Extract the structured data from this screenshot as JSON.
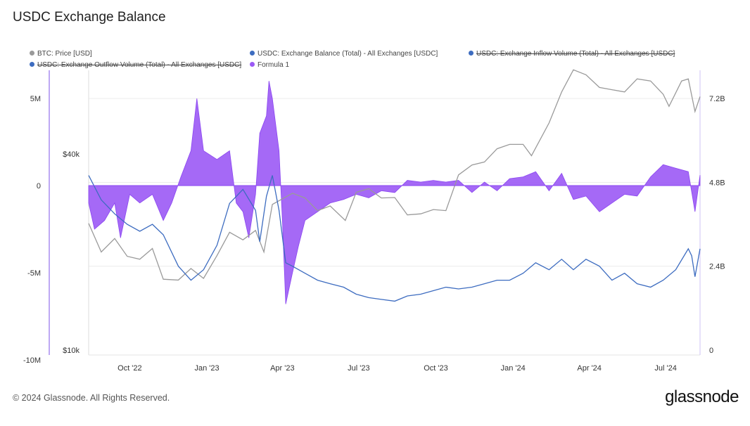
{
  "title": "USDC Exchange Balance",
  "footer": "© 2024 Glassnode. All Rights Reserved.",
  "logo": "glassnode",
  "chart_data": {
    "type": "line",
    "title": "USDC Exchange Balance",
    "legend": [
      {
        "name": "BTC: Price [USD]",
        "color": "#999999",
        "hidden": false
      },
      {
        "name": "USDC: Exchange Balance (Total) - All Exchanges [USDC]",
        "color": "#3d6cc0",
        "hidden": false
      },
      {
        "name": "USDC: Exchange Inflow Volume (Total) - All Exchanges [USDC]",
        "color": "#3d6cc0",
        "hidden": true
      },
      {
        "name": "USDC: Exchange Outflow Volume (Total) - All Exchanges [USDC]",
        "color": "#3d6cc0",
        "hidden": true
      },
      {
        "name": "Formula 1",
        "color": "#9b59f5",
        "hidden": false
      }
    ],
    "x_range": [
      "2022-08-13",
      "2024-08-11"
    ],
    "x_ticks": [
      {
        "date": "2022-10-01",
        "label": "Oct '22"
      },
      {
        "date": "2023-01-01",
        "label": "Jan '23"
      },
      {
        "date": "2023-04-01",
        "label": "Apr '23"
      },
      {
        "date": "2023-07-01",
        "label": "Jul '23"
      },
      {
        "date": "2023-10-01",
        "label": "Oct '23"
      },
      {
        "date": "2024-01-01",
        "label": "Jan '24"
      },
      {
        "date": "2024-04-01",
        "label": "Apr '24"
      },
      {
        "date": "2024-07-01",
        "label": "Jul '24"
      }
    ],
    "y_formula": {
      "range": [
        -10,
        7.6
      ],
      "unit": "M",
      "ticks": [
        {
          "v": 5,
          "label": "5M"
        },
        {
          "v": 0,
          "label": "0"
        },
        {
          "v": -5,
          "label": "-5M"
        },
        {
          "v": -10,
          "label": "-10M"
        }
      ]
    },
    "y_price": {
      "scale": "log",
      "range": [
        10000,
        80000
      ],
      "ticks": [
        {
          "v": 40000,
          "label": "$40k"
        },
        {
          "v": 10000,
          "label": "$10k"
        }
      ]
    },
    "y_balance": {
      "range": [
        0,
        7.6
      ],
      "unit": "B",
      "ticks": [
        {
          "v": 7.2,
          "label": "7.2B"
        },
        {
          "v": 4.8,
          "label": "4.8B"
        },
        {
          "v": 2.4,
          "label": "2.4B"
        },
        {
          "v": 0,
          "label": "0"
        }
      ]
    },
    "series": [
      {
        "name": "BTC: Price [USD]",
        "axis": "price",
        "points": [
          [
            "2022-08-13",
            24500
          ],
          [
            "2022-08-28",
            20000
          ],
          [
            "2022-09-13",
            22000
          ],
          [
            "2022-09-28",
            19400
          ],
          [
            "2022-10-13",
            19000
          ],
          [
            "2022-10-28",
            20500
          ],
          [
            "2022-11-10",
            16500
          ],
          [
            "2022-11-28",
            16400
          ],
          [
            "2022-12-13",
            17800
          ],
          [
            "2022-12-28",
            16600
          ],
          [
            "2023-01-13",
            19500
          ],
          [
            "2023-01-28",
            23000
          ],
          [
            "2023-02-13",
            21800
          ],
          [
            "2023-02-28",
            23300
          ],
          [
            "2023-03-10",
            20000
          ],
          [
            "2023-03-20",
            28000
          ],
          [
            "2023-04-13",
            30300
          ],
          [
            "2023-04-28",
            29300
          ],
          [
            "2023-05-13",
            26800
          ],
          [
            "2023-05-28",
            27700
          ],
          [
            "2023-06-15",
            25000
          ],
          [
            "2023-06-28",
            30500
          ],
          [
            "2023-07-13",
            31300
          ],
          [
            "2023-07-28",
            29300
          ],
          [
            "2023-08-13",
            29400
          ],
          [
            "2023-08-28",
            26000
          ],
          [
            "2023-09-13",
            26200
          ],
          [
            "2023-09-28",
            27000
          ],
          [
            "2023-10-13",
            26800
          ],
          [
            "2023-10-28",
            34500
          ],
          [
            "2023-11-13",
            37000
          ],
          [
            "2023-11-28",
            37800
          ],
          [
            "2023-12-13",
            41500
          ],
          [
            "2023-12-28",
            42800
          ],
          [
            "2024-01-13",
            42800
          ],
          [
            "2024-01-23",
            39500
          ],
          [
            "2024-02-13",
            49800
          ],
          [
            "2024-02-28",
            62000
          ],
          [
            "2024-03-13",
            72500
          ],
          [
            "2024-03-28",
            70000
          ],
          [
            "2024-04-13",
            64000
          ],
          [
            "2024-04-28",
            63000
          ],
          [
            "2024-05-13",
            62000
          ],
          [
            "2024-05-28",
            68000
          ],
          [
            "2024-06-13",
            67000
          ],
          [
            "2024-06-28",
            61000
          ],
          [
            "2024-07-05",
            56000
          ],
          [
            "2024-07-20",
            67000
          ],
          [
            "2024-07-28",
            68000
          ],
          [
            "2024-08-05",
            54000
          ],
          [
            "2024-08-11",
            60000
          ]
        ]
      },
      {
        "name": "USDC: Exchange Balance (Total) - All Exchanges [USDC]",
        "axis": "balance",
        "points": [
          [
            "2022-08-13",
            5.0
          ],
          [
            "2022-08-28",
            4.3
          ],
          [
            "2022-09-13",
            3.9
          ],
          [
            "2022-09-28",
            3.6
          ],
          [
            "2022-10-13",
            3.4
          ],
          [
            "2022-10-28",
            3.6
          ],
          [
            "2022-11-10",
            3.3
          ],
          [
            "2022-11-28",
            2.4
          ],
          [
            "2022-12-13",
            2.0
          ],
          [
            "2022-12-28",
            2.3
          ],
          [
            "2023-01-13",
            3.0
          ],
          [
            "2023-01-28",
            4.2
          ],
          [
            "2023-02-13",
            4.6
          ],
          [
            "2023-02-28",
            4.0
          ],
          [
            "2023-03-05",
            3.1
          ],
          [
            "2023-03-13",
            4.4
          ],
          [
            "2023-03-20",
            5.0
          ],
          [
            "2023-03-28",
            4.0
          ],
          [
            "2023-04-05",
            2.5
          ],
          [
            "2023-04-13",
            2.4
          ],
          [
            "2023-04-28",
            2.2
          ],
          [
            "2023-05-13",
            2.0
          ],
          [
            "2023-05-28",
            1.9
          ],
          [
            "2023-06-13",
            1.8
          ],
          [
            "2023-06-28",
            1.6
          ],
          [
            "2023-07-13",
            1.5
          ],
          [
            "2023-07-28",
            1.45
          ],
          [
            "2023-08-13",
            1.4
          ],
          [
            "2023-08-28",
            1.55
          ],
          [
            "2023-09-13",
            1.6
          ],
          [
            "2023-09-28",
            1.7
          ],
          [
            "2023-10-13",
            1.8
          ],
          [
            "2023-10-28",
            1.75
          ],
          [
            "2023-11-13",
            1.8
          ],
          [
            "2023-11-28",
            1.9
          ],
          [
            "2023-12-13",
            2.0
          ],
          [
            "2023-12-28",
            2.0
          ],
          [
            "2024-01-13",
            2.2
          ],
          [
            "2024-01-28",
            2.5
          ],
          [
            "2024-02-13",
            2.3
          ],
          [
            "2024-02-28",
            2.6
          ],
          [
            "2024-03-13",
            2.3
          ],
          [
            "2024-03-28",
            2.6
          ],
          [
            "2024-04-13",
            2.4
          ],
          [
            "2024-04-28",
            2.0
          ],
          [
            "2024-05-13",
            2.2
          ],
          [
            "2024-05-28",
            1.9
          ],
          [
            "2024-06-13",
            1.8
          ],
          [
            "2024-06-28",
            2.0
          ],
          [
            "2024-07-13",
            2.3
          ],
          [
            "2024-07-28",
            2.9
          ],
          [
            "2024-08-01",
            2.7
          ],
          [
            "2024-08-05",
            2.1
          ],
          [
            "2024-08-11",
            2.9
          ]
        ]
      },
      {
        "name": "Formula 1",
        "axis": "formula",
        "type": "area",
        "points": [
          [
            "2022-08-13",
            -1
          ],
          [
            "2022-08-20",
            -2.5
          ],
          [
            "2022-09-01",
            -2
          ],
          [
            "2022-09-13",
            -1
          ],
          [
            "2022-09-20",
            -3
          ],
          [
            "2022-10-01",
            -0.5
          ],
          [
            "2022-10-13",
            -1
          ],
          [
            "2022-10-28",
            -0.5
          ],
          [
            "2022-11-10",
            -2
          ],
          [
            "2022-11-20",
            -1
          ],
          [
            "2022-12-01",
            0.5
          ],
          [
            "2022-12-13",
            2
          ],
          [
            "2022-12-20",
            5
          ],
          [
            "2022-12-28",
            2
          ],
          [
            "2023-01-13",
            1.5
          ],
          [
            "2023-01-28",
            2
          ],
          [
            "2023-02-05",
            -1
          ],
          [
            "2023-02-13",
            -1.5
          ],
          [
            "2023-02-20",
            -3
          ],
          [
            "2023-02-28",
            -0.5
          ],
          [
            "2023-03-05",
            3
          ],
          [
            "2023-03-13",
            4
          ],
          [
            "2023-03-16",
            6
          ],
          [
            "2023-03-20",
            5
          ],
          [
            "2023-03-28",
            2
          ],
          [
            "2023-04-01",
            -2
          ],
          [
            "2023-04-05",
            -6.8
          ],
          [
            "2023-04-13",
            -5
          ],
          [
            "2023-04-20",
            -3.5
          ],
          [
            "2023-04-28",
            -2
          ],
          [
            "2023-05-13",
            -1.5
          ],
          [
            "2023-05-28",
            -1
          ],
          [
            "2023-06-13",
            -0.8
          ],
          [
            "2023-06-28",
            -0.5
          ],
          [
            "2023-07-13",
            -0.7
          ],
          [
            "2023-07-28",
            -0.3
          ],
          [
            "2023-08-13",
            -0.4
          ],
          [
            "2023-08-28",
            0.3
          ],
          [
            "2023-09-13",
            0.2
          ],
          [
            "2023-09-28",
            0.3
          ],
          [
            "2023-10-13",
            0.2
          ],
          [
            "2023-10-28",
            0.3
          ],
          [
            "2023-11-13",
            -0.4
          ],
          [
            "2023-11-28",
            0.2
          ],
          [
            "2023-12-13",
            -0.3
          ],
          [
            "2023-12-28",
            0.4
          ],
          [
            "2024-01-13",
            0.5
          ],
          [
            "2024-01-28",
            0.8
          ],
          [
            "2024-02-13",
            -0.3
          ],
          [
            "2024-02-28",
            0.7
          ],
          [
            "2024-03-13",
            -0.8
          ],
          [
            "2024-03-28",
            -0.6
          ],
          [
            "2024-04-13",
            -1.5
          ],
          [
            "2024-04-28",
            -1
          ],
          [
            "2024-05-13",
            -0.5
          ],
          [
            "2024-05-28",
            -0.6
          ],
          [
            "2024-06-13",
            0.5
          ],
          [
            "2024-06-28",
            1.2
          ],
          [
            "2024-07-13",
            1.0
          ],
          [
            "2024-07-28",
            0.8
          ],
          [
            "2024-08-05",
            -1.5
          ],
          [
            "2024-08-11",
            0.6
          ]
        ]
      }
    ]
  }
}
